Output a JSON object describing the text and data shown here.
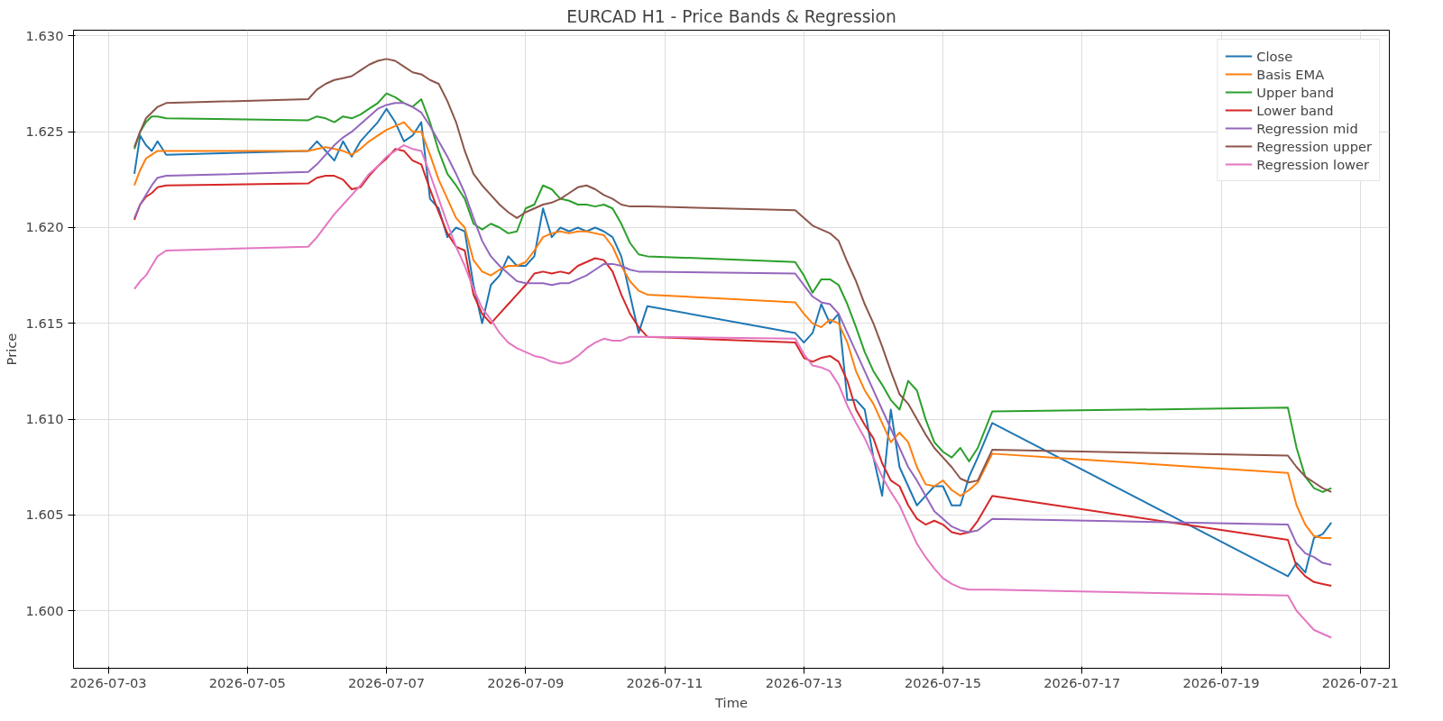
{
  "chart_data": {
    "type": "line",
    "title": "EURCAD H1 - Price Bands & Regression",
    "xlabel": "Time",
    "ylabel": "Price",
    "x": [
      "2026-07-03T09:00",
      "2026-07-03T11:00",
      "2026-07-03T13:00",
      "2026-07-03T15:00",
      "2026-07-03T17:00",
      "2026-07-03T20:00",
      "2026-07-05T21:00",
      "2026-07-06T00:00",
      "2026-07-06T03:00",
      "2026-07-06T06:00",
      "2026-07-06T09:00",
      "2026-07-06T12:00",
      "2026-07-06T15:00",
      "2026-07-06T18:00",
      "2026-07-06T21:00",
      "2026-07-07T00:00",
      "2026-07-07T03:00",
      "2026-07-07T06:00",
      "2026-07-07T09:00",
      "2026-07-07T12:00",
      "2026-07-07T15:00",
      "2026-07-07T18:00",
      "2026-07-07T21:00",
      "2026-07-08T00:00",
      "2026-07-08T03:00",
      "2026-07-08T06:00",
      "2026-07-08T09:00",
      "2026-07-08T12:00",
      "2026-07-08T15:00",
      "2026-07-08T18:00",
      "2026-07-08T21:00",
      "2026-07-09T00:00",
      "2026-07-09T03:00",
      "2026-07-09T06:00",
      "2026-07-09T09:00",
      "2026-07-09T12:00",
      "2026-07-09T15:00",
      "2026-07-09T18:00",
      "2026-07-09T21:00",
      "2026-07-10T00:00",
      "2026-07-10T03:00",
      "2026-07-10T06:00",
      "2026-07-10T09:00",
      "2026-07-10T12:00",
      "2026-07-10T15:00",
      "2026-07-10T18:00",
      "2026-07-12T21:00",
      "2026-07-13T00:00",
      "2026-07-13T03:00",
      "2026-07-13T06:00",
      "2026-07-13T09:00",
      "2026-07-13T12:00",
      "2026-07-13T15:00",
      "2026-07-13T18:00",
      "2026-07-13T21:00",
      "2026-07-14T00:00",
      "2026-07-14T03:00",
      "2026-07-14T06:00",
      "2026-07-14T09:00",
      "2026-07-14T12:00",
      "2026-07-14T15:00",
      "2026-07-14T18:00",
      "2026-07-14T21:00",
      "2026-07-15T00:00",
      "2026-07-15T03:00",
      "2026-07-15T06:00",
      "2026-07-15T09:00",
      "2026-07-15T12:00",
      "2026-07-15T17:00",
      "2026-07-19T23:00",
      "2026-07-20T02:00",
      "2026-07-20T05:00",
      "2026-07-20T08:00",
      "2026-07-20T11:00",
      "2026-07-20T14:00"
    ],
    "series": [
      {
        "name": "Close",
        "color": "#1f77b4",
        "values": [
          1.6228,
          1.6248,
          1.6243,
          1.624,
          1.6245,
          1.6238,
          1.624,
          1.6245,
          1.624,
          1.6235,
          1.6245,
          1.6237,
          1.6245,
          1.625,
          1.6255,
          1.6262,
          1.6255,
          1.6245,
          1.6248,
          1.6255,
          1.6215,
          1.621,
          1.6195,
          1.62,
          1.6198,
          1.617,
          1.615,
          1.617,
          1.6175,
          1.6185,
          1.618,
          1.618,
          1.6185,
          1.621,
          1.6195,
          1.62,
          1.6198,
          1.62,
          1.6198,
          1.62,
          1.6198,
          1.6195,
          1.6185,
          1.6165,
          1.6145,
          1.6159,
          1.6145,
          1.614,
          1.6145,
          1.616,
          1.615,
          1.6155,
          1.611,
          1.611,
          1.6105,
          1.608,
          1.606,
          1.6105,
          1.6075,
          1.6065,
          1.6055,
          1.606,
          1.6065,
          1.6065,
          1.6055,
          1.6055,
          1.607,
          1.608,
          1.6098,
          1.6018,
          1.6025,
          1.602,
          1.6038,
          1.604,
          1.6046
        ]
      },
      {
        "name": "Basis EMA",
        "color": "#ff7f0e",
        "values": [
          1.6222,
          1.623,
          1.6236,
          1.6238,
          1.624,
          1.624,
          1.624,
          1.6241,
          1.6242,
          1.6241,
          1.624,
          1.6238,
          1.6241,
          1.6245,
          1.6248,
          1.6251,
          1.6253,
          1.6255,
          1.625,
          1.625,
          1.6238,
          1.6225,
          1.6215,
          1.6205,
          1.62,
          1.6183,
          1.6177,
          1.6175,
          1.6178,
          1.618,
          1.618,
          1.6182,
          1.6188,
          1.6195,
          1.6197,
          1.6198,
          1.6197,
          1.6198,
          1.6198,
          1.6197,
          1.6196,
          1.619,
          1.618,
          1.6172,
          1.6167,
          1.6165,
          1.6161,
          1.6155,
          1.615,
          1.6148,
          1.6152,
          1.615,
          1.614,
          1.6125,
          1.6115,
          1.6108,
          1.6098,
          1.6088,
          1.6093,
          1.6088,
          1.6075,
          1.6066,
          1.6065,
          1.6068,
          1.6063,
          1.606,
          1.6063,
          1.6067,
          1.6082,
          1.6072,
          1.6055,
          1.6045,
          1.6039,
          1.6038,
          1.6038
        ]
      },
      {
        "name": "Upper band",
        "color": "#2ca02c",
        "values": [
          1.6241,
          1.625,
          1.6255,
          1.6258,
          1.6258,
          1.6257,
          1.6256,
          1.6258,
          1.6257,
          1.6255,
          1.6258,
          1.6257,
          1.6259,
          1.6262,
          1.6265,
          1.627,
          1.6268,
          1.6265,
          1.6263,
          1.6267,
          1.6255,
          1.624,
          1.6228,
          1.6222,
          1.6215,
          1.6202,
          1.6199,
          1.6202,
          1.62,
          1.6197,
          1.6198,
          1.621,
          1.6212,
          1.6222,
          1.622,
          1.6215,
          1.6214,
          1.6212,
          1.6212,
          1.6211,
          1.6212,
          1.621,
          1.6202,
          1.6192,
          1.6186,
          1.6185,
          1.6182,
          1.6175,
          1.6166,
          1.6173,
          1.6173,
          1.617,
          1.616,
          1.6148,
          1.6135,
          1.6125,
          1.6118,
          1.611,
          1.6105,
          1.612,
          1.6115,
          1.61,
          1.6088,
          1.6083,
          1.608,
          1.6085,
          1.6078,
          1.6085,
          1.6104,
          1.6106,
          1.6085,
          1.607,
          1.6064,
          1.6062,
          1.6064
        ]
      },
      {
        "name": "Lower band",
        "color": "#d62728",
        "values": [
          1.6204,
          1.6212,
          1.6216,
          1.6218,
          1.6221,
          1.6222,
          1.6223,
          1.6226,
          1.6227,
          1.6227,
          1.6225,
          1.622,
          1.6221,
          1.6227,
          1.6232,
          1.6236,
          1.6241,
          1.624,
          1.6235,
          1.6233,
          1.622,
          1.6208,
          1.6197,
          1.619,
          1.6188,
          1.6165,
          1.6155,
          1.615,
          1.6155,
          1.616,
          1.6165,
          1.617,
          1.6176,
          1.6177,
          1.6176,
          1.6177,
          1.6176,
          1.618,
          1.6182,
          1.6184,
          1.6183,
          1.6177,
          1.6165,
          1.6155,
          1.6148,
          1.6143,
          1.614,
          1.6132,
          1.613,
          1.6132,
          1.6133,
          1.613,
          1.612,
          1.6105,
          1.6097,
          1.609,
          1.6077,
          1.6068,
          1.6065,
          1.6055,
          1.6048,
          1.6045,
          1.6047,
          1.6045,
          1.6041,
          1.604,
          1.6041,
          1.6047,
          1.606,
          1.6037,
          1.6023,
          1.6018,
          1.6015,
          1.6014,
          1.6013
        ]
      },
      {
        "name": "Regression mid",
        "color": "#9467bd",
        "values": [
          1.6205,
          1.6212,
          1.6217,
          1.6222,
          1.6226,
          1.6227,
          1.6229,
          1.6233,
          1.6238,
          1.6243,
          1.6247,
          1.625,
          1.6254,
          1.6258,
          1.6262,
          1.6264,
          1.6265,
          1.6265,
          1.6263,
          1.626,
          1.6253,
          1.6245,
          1.6237,
          1.6228,
          1.6218,
          1.6205,
          1.6193,
          1.6185,
          1.618,
          1.6176,
          1.6172,
          1.6171,
          1.6171,
          1.6171,
          1.617,
          1.6171,
          1.6171,
          1.6173,
          1.6175,
          1.6178,
          1.6181,
          1.6181,
          1.618,
          1.6178,
          1.6177,
          1.6177,
          1.6176,
          1.617,
          1.6164,
          1.6161,
          1.616,
          1.6155,
          1.6145,
          1.6135,
          1.6125,
          1.6115,
          1.6105,
          1.6095,
          1.6085,
          1.6075,
          1.6068,
          1.606,
          1.6052,
          1.6048,
          1.6044,
          1.6042,
          1.6041,
          1.6042,
          1.6048,
          1.6045,
          1.6035,
          1.603,
          1.6028,
          1.6025,
          1.6024
        ]
      },
      {
        "name": "Regression upper",
        "color": "#8c564b",
        "values": [
          1.6242,
          1.625,
          1.6257,
          1.626,
          1.6263,
          1.6265,
          1.6267,
          1.6272,
          1.6275,
          1.6277,
          1.6278,
          1.6279,
          1.6282,
          1.6285,
          1.6287,
          1.6288,
          1.6287,
          1.6284,
          1.6281,
          1.628,
          1.6277,
          1.6275,
          1.6266,
          1.6255,
          1.624,
          1.6228,
          1.6222,
          1.6217,
          1.6212,
          1.6208,
          1.6205,
          1.6208,
          1.621,
          1.6212,
          1.6213,
          1.6215,
          1.6218,
          1.6221,
          1.6222,
          1.622,
          1.6217,
          1.6215,
          1.6212,
          1.6211,
          1.6211,
          1.6211,
          1.6209,
          1.6205,
          1.6201,
          1.6199,
          1.6197,
          1.6193,
          1.6182,
          1.6172,
          1.616,
          1.615,
          1.6138,
          1.6125,
          1.6113,
          1.6108,
          1.61,
          1.6092,
          1.6085,
          1.608,
          1.6075,
          1.6069,
          1.6067,
          1.6068,
          1.6084,
          1.6081,
          1.6075,
          1.607,
          1.6067,
          1.6064,
          1.6062
        ]
      },
      {
        "name": "Regression lower",
        "color": "#e377c2",
        "values": [
          1.6168,
          1.6172,
          1.6175,
          1.618,
          1.6185,
          1.6188,
          1.619,
          1.6195,
          1.6201,
          1.6207,
          1.6212,
          1.6217,
          1.6222,
          1.6228,
          1.6232,
          1.6237,
          1.624,
          1.6243,
          1.6241,
          1.624,
          1.6228,
          1.6215,
          1.6202,
          1.619,
          1.618,
          1.6168,
          1.6158,
          1.6152,
          1.6145,
          1.614,
          1.6137,
          1.6135,
          1.6133,
          1.6132,
          1.613,
          1.6129,
          1.613,
          1.6133,
          1.6137,
          1.614,
          1.6142,
          1.6141,
          1.6141,
          1.6143,
          1.6143,
          1.6143,
          1.6142,
          1.6134,
          1.6128,
          1.6127,
          1.6125,
          1.6118,
          1.6107,
          1.6098,
          1.609,
          1.608,
          1.607,
          1.6062,
          1.6055,
          1.6045,
          1.6035,
          1.6028,
          1.6022,
          1.6017,
          1.6014,
          1.6012,
          1.6011,
          1.6011,
          1.6011,
          1.6008,
          1.6,
          1.5995,
          1.599,
          1.5988,
          1.5986
        ]
      }
    ],
    "xlim": [
      "2026-07-02T12:00",
      "2026-07-21T10:00"
    ],
    "xticks": [
      "2026-07-03",
      "2026-07-05",
      "2026-07-07",
      "2026-07-09",
      "2026-07-11",
      "2026-07-13",
      "2026-07-15",
      "2026-07-17",
      "2026-07-19",
      "2026-07-21"
    ],
    "ylim": [
      1.597,
      1.6303
    ],
    "yticks": [
      {
        "value": 1.6,
        "label": "1.600"
      },
      {
        "value": 1.605,
        "label": "1.605"
      },
      {
        "value": 1.61,
        "label": "1.610"
      },
      {
        "value": 1.615,
        "label": "1.615"
      },
      {
        "value": 1.62,
        "label": "1.620"
      },
      {
        "value": 1.625,
        "label": "1.625"
      },
      {
        "value": 1.63,
        "label": "1.630"
      }
    ],
    "grid": true,
    "legend": "top right",
    "line_style": "solid"
  }
}
